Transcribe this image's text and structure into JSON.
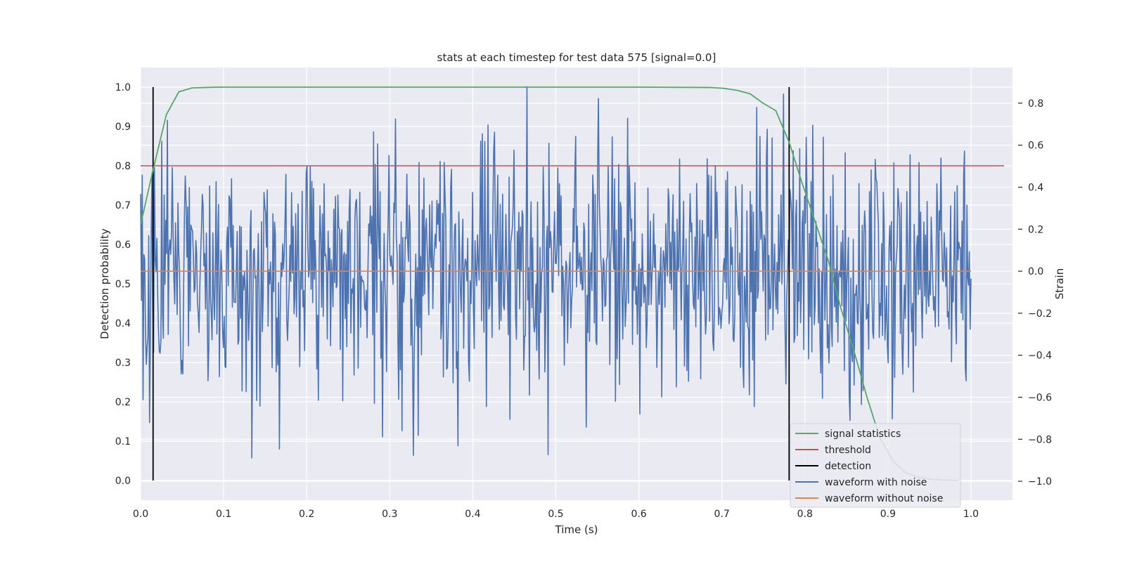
{
  "chart_data": {
    "type": "line",
    "title": "stats at each timestep for test data 575 [signal=0.0]",
    "xlabel": "Time (s)",
    "ylabel_left": "Detection probability",
    "ylabel_right": "Strain",
    "xlim": [
      0.0,
      1.05
    ],
    "ylim_left": [
      -0.05,
      1.05
    ],
    "ylim_right": [
      -1.09,
      0.97
    ],
    "x_ticks": [
      0.0,
      0.1,
      0.2,
      0.3,
      0.4,
      0.5,
      0.6,
      0.7,
      0.8,
      0.9,
      1.0
    ],
    "y_left_ticks": [
      0.0,
      0.1,
      0.2,
      0.3,
      0.4,
      0.5,
      0.6,
      0.7,
      0.8,
      0.9,
      1.0
    ],
    "y_right_ticks": [
      -1.0,
      -0.8,
      -0.6,
      -0.4,
      -0.2,
      0.0,
      0.2,
      0.4,
      0.6,
      0.8
    ],
    "y_right_tick_labels": [
      "−1.0",
      "−0.8",
      "−0.6",
      "−0.4",
      "−0.2",
      "0.0",
      "0.2",
      "0.4",
      "0.6",
      "0.8"
    ],
    "grid": true,
    "legend_position": "lower-right",
    "colors": {
      "plot_background": "#eaeaf2",
      "grid": "#ffffff",
      "signal_statistics": "#55a868",
      "threshold": "#c44e52",
      "detection": "#000000",
      "waveform_with_noise": "#4c72b0",
      "waveform_without_noise": "#dd8452"
    },
    "series": [
      {
        "name": "signal statistics",
        "axis": "left",
        "color": "#55a868",
        "x": [
          0.0,
          0.015,
          0.031,
          0.046,
          0.062,
          0.078,
          0.093,
          0.2,
          0.4,
          0.6,
          0.686,
          0.702,
          0.718,
          0.734,
          0.749,
          0.765,
          0.781,
          0.796,
          0.812,
          0.828,
          0.843,
          0.859,
          0.875,
          0.89,
          0.906,
          0.921,
          0.937,
          0.953,
          0.968,
          0.984
        ],
        "values": [
          0.65,
          0.79,
          0.93,
          0.988,
          0.998,
          0.999,
          1.0,
          1.0,
          1.0,
          1.0,
          0.999,
          0.997,
          0.992,
          0.983,
          0.96,
          0.94,
          0.86,
          0.76,
          0.66,
          0.56,
          0.44,
          0.33,
          0.21,
          0.11,
          0.05,
          0.02,
          0.008,
          0.003,
          0.001,
          0.0
        ]
      },
      {
        "name": "threshold",
        "axis": "left",
        "color": "#c44e52",
        "x": [
          0.0,
          1.04
        ],
        "values": [
          0.8,
          0.8
        ]
      },
      {
        "name": "detection",
        "axis": "left",
        "color": "#000000",
        "segments": [
          {
            "x": 0.015,
            "y": [
              0.0,
              1.0
            ]
          },
          {
            "x": 0.781,
            "y": [
              0.0,
              1.0
            ]
          }
        ]
      },
      {
        "name": "waveform with noise",
        "axis": "right",
        "color": "#4c72b0",
        "x_start": 0.0,
        "x_end": 1.0,
        "n_points": 1024,
        "amplitude_range": [
          -0.89,
          0.92
        ],
        "description_note": ""
      },
      {
        "name": "waveform without noise",
        "axis": "right",
        "color": "#dd8452",
        "x": [
          0.0,
          1.0
        ],
        "values": [
          0.0,
          0.0
        ]
      }
    ]
  }
}
